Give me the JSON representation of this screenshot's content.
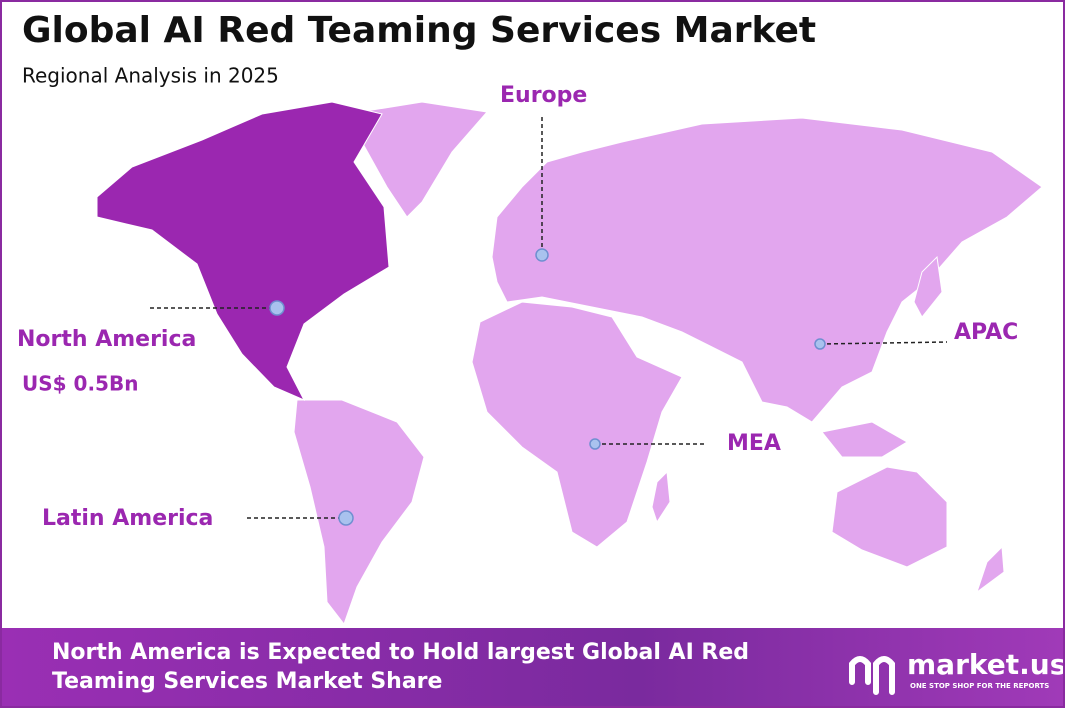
{
  "header": {
    "title": "Global AI Red Teaming Services Market",
    "subtitle": "Regional Analysis in 2025"
  },
  "regions": [
    {
      "label": "North America",
      "value": "US$ 0.5Bn"
    },
    {
      "label": "Europe"
    },
    {
      "label": "APAC"
    },
    {
      "label": "MEA"
    },
    {
      "label": "Latin America"
    }
  ],
  "footer": {
    "text": "North America is Expected to Hold largest Global AI Red Teaming Services Market Share",
    "brand": "market.us",
    "tagline": "ONE STOP SHOP FOR THE REPORTS"
  }
}
